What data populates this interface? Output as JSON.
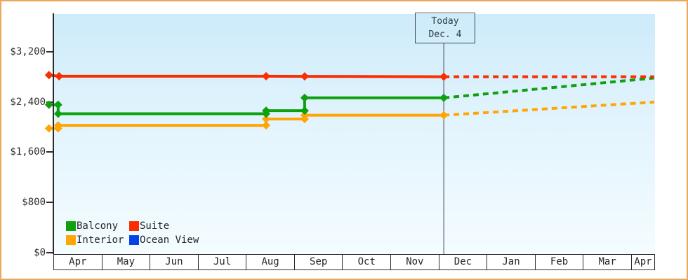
{
  "page": {
    "border_color": "#eba85c",
    "background_color": "#ffffff",
    "plot_gradient_top": "#cdebfa",
    "plot_gradient_bottom": "#f4fcff"
  },
  "today_annotation": {
    "line1": "Today",
    "line2": "Dec. 4"
  },
  "legend": {
    "items": [
      {
        "label": "Balcony",
        "color": "#0ea10e"
      },
      {
        "label": "Suite",
        "color": "#fa2e00"
      },
      {
        "label": "Interior",
        "color": "#ffa506"
      },
      {
        "label": "Ocean View",
        "color": "#0541e4"
      }
    ]
  },
  "chart_data": {
    "type": "line",
    "title": "",
    "xlabel": "",
    "ylabel": "",
    "grid": false,
    "legend_position": "bottom-left inside plot",
    "x_categories": [
      "Apr",
      "May",
      "Jun",
      "Jul",
      "Aug",
      "Sep",
      "Oct",
      "Nov",
      "Dec",
      "Jan",
      "Feb",
      "Mar",
      "Apr"
    ],
    "x_unit": "months since Apr 1 (decimal)",
    "x_range_months": [
      0,
      12.45
    ],
    "y_ticks": [
      {
        "label": "$0",
        "value": 0
      },
      {
        "label": "$800",
        "value": 800
      },
      {
        "label": "$1,600",
        "value": 1600
      },
      {
        "label": "$2,400",
        "value": 2400
      },
      {
        "label": "$3,200",
        "value": 3200
      }
    ],
    "ylim": [
      0,
      3800
    ],
    "today_month": 8.08,
    "series": [
      {
        "name": "Interior",
        "color": "#ffa506",
        "solid_points": [
          [
            -0.12,
            1978
          ],
          [
            0.07,
            1978
          ],
          [
            0.07,
            2026
          ],
          [
            4.39,
            2026
          ],
          [
            4.39,
            2128
          ],
          [
            5.19,
            2128
          ],
          [
            5.19,
            2188
          ],
          [
            8.08,
            2188
          ]
        ],
        "projected_points": [
          [
            8.08,
            2188
          ],
          [
            12.45,
            2398
          ]
        ]
      },
      {
        "name": "Balcony",
        "color": "#0ea10e",
        "solid_points": [
          [
            -0.12,
            2356
          ],
          [
            0.07,
            2356
          ],
          [
            0.07,
            2212
          ],
          [
            4.39,
            2212
          ],
          [
            4.39,
            2260
          ],
          [
            5.19,
            2260
          ],
          [
            5.19,
            2465
          ],
          [
            8.08,
            2465
          ]
        ],
        "projected_points": [
          [
            8.08,
            2465
          ],
          [
            12.45,
            2782
          ]
        ]
      },
      {
        "name": "Suite",
        "color": "#fa2e00",
        "solid_points": [
          [
            -0.12,
            2828
          ],
          [
            0.09,
            2810
          ],
          [
            4.39,
            2810
          ],
          [
            5.19,
            2808
          ],
          [
            8.08,
            2802
          ]
        ],
        "projected_points": [
          [
            8.08,
            2802
          ],
          [
            12.45,
            2802
          ]
        ]
      },
      {
        "name": "Ocean View",
        "color": "#0541e4",
        "solid_points": [],
        "projected_points": []
      }
    ]
  }
}
